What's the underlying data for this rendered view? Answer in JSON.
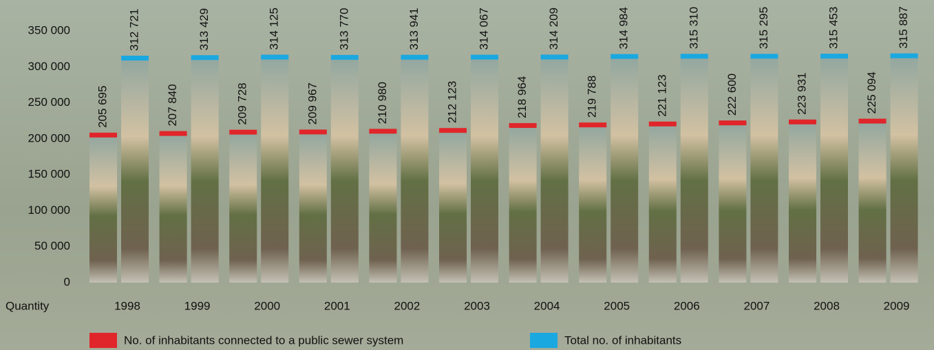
{
  "chart_data": {
    "type": "bar",
    "x_label": "Quantity",
    "categories": [
      "1998",
      "1999",
      "2000",
      "2001",
      "2002",
      "2003",
      "2004",
      "2005",
      "2006",
      "2007",
      "2008",
      "2009"
    ],
    "series": [
      {
        "name": "No. of inhabitants connected to a public sewer system",
        "color": "#e0262b",
        "values": [
          205695,
          207840,
          209728,
          209967,
          210980,
          212123,
          218964,
          219788,
          221123,
          222600,
          223931,
          225094
        ],
        "value_labels": [
          "205 695",
          "207 840",
          "209 728",
          "209 967",
          "210 980",
          "212 123",
          "218 964",
          "219 788",
          "221 123",
          "222 600",
          "223 931",
          "225 094"
        ]
      },
      {
        "name": "Total no. of inhabitants",
        "color": "#1aa8e0",
        "values": [
          312721,
          313429,
          314125,
          313770,
          313941,
          314067,
          314209,
          314984,
          315310,
          315295,
          315453,
          315887
        ],
        "value_labels": [
          "312 721",
          "313 429",
          "314 125",
          "313 770",
          "313 941",
          "314 067",
          "314 209",
          "314 984",
          "315 310",
          "315 295",
          "315 453",
          "315 887"
        ]
      }
    ],
    "ylim": [
      0,
      350000
    ],
    "yticks": [
      0,
      {
        "value": 50000,
        "label": "50 000"
      },
      {
        "value": 100000,
        "label": "100 000"
      },
      {
        "value": 150000,
        "label": "150 000"
      },
      {
        "value": 200000,
        "label": "200 000"
      },
      {
        "value": 250000,
        "label": "250 000"
      },
      {
        "value": 300000,
        "label": "300 000"
      },
      {
        "value": 350000,
        "label": "350 000"
      }
    ]
  }
}
